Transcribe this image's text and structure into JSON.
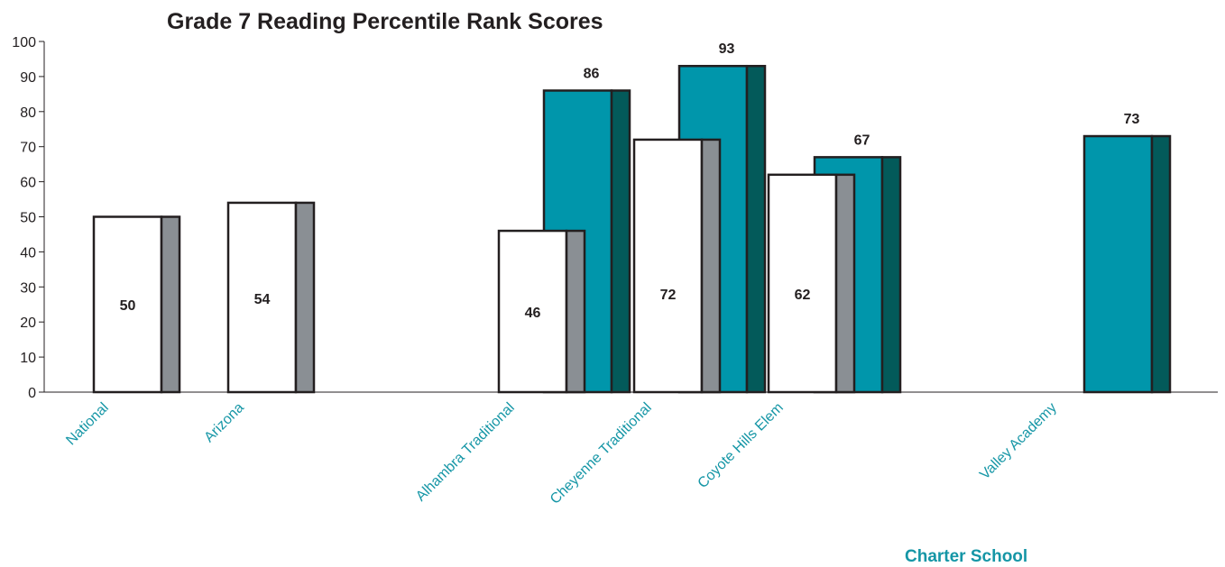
{
  "chart_data": {
    "type": "bar",
    "title": "Grade 7 Reading Percentile Rank Scores",
    "xlabel": "",
    "ylabel": "",
    "ylim": [
      0,
      100
    ],
    "yticks": [
      0,
      10,
      20,
      30,
      40,
      50,
      60,
      70,
      80,
      90,
      100
    ],
    "categories": [
      "National",
      "Arizona",
      "Alhambra Traditional",
      "Cheyenne Traditional",
      "Coyote Hills Elem",
      "Valley Academy"
    ],
    "series": [
      {
        "values": [
          50,
          54,
          46,
          72,
          62,
          null
        ],
        "color": "#ffffff",
        "side_color": "#8a8f94"
      },
      {
        "values": [
          null,
          null,
          86,
          93,
          67,
          73
        ],
        "color": "#0096ab",
        "side_color": "#035a5a"
      }
    ],
    "grid": false,
    "legend": "none"
  },
  "group_label": "Charter School",
  "colors": {
    "category_text": "#1596a6",
    "axis": "#231f20"
  }
}
